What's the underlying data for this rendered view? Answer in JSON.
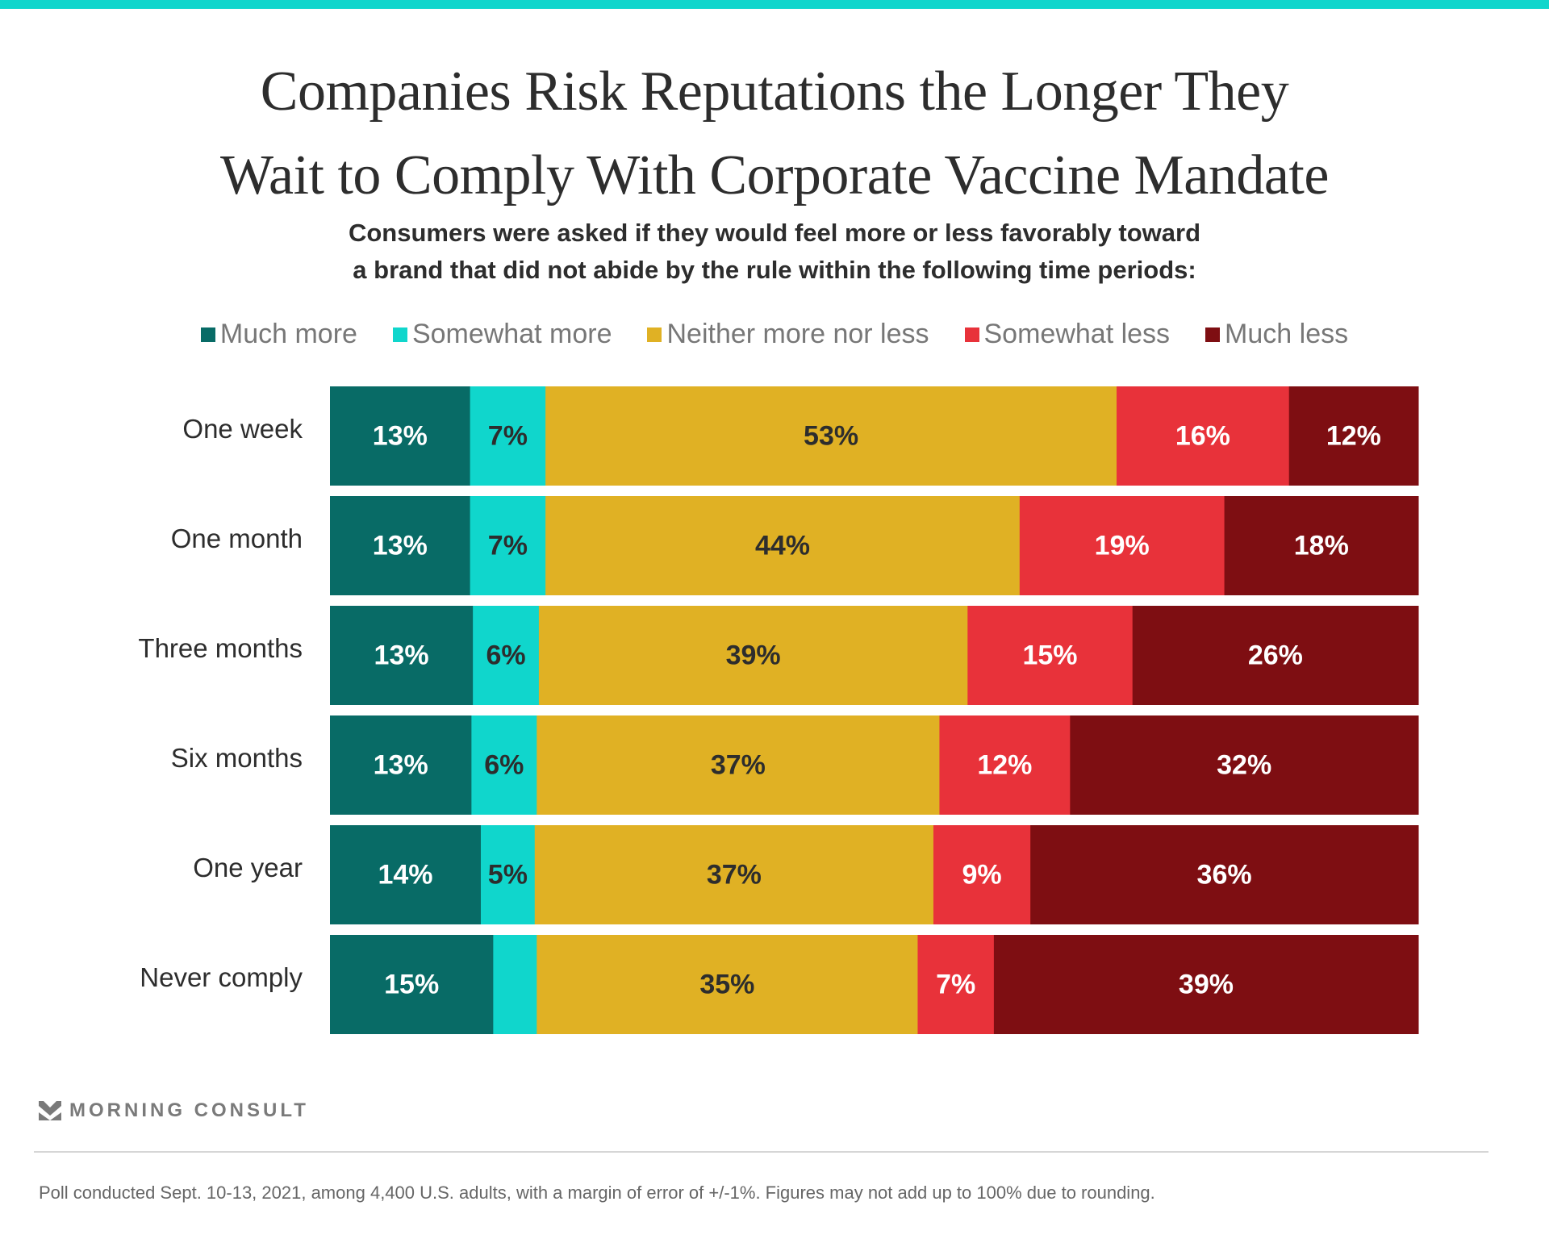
{
  "chart_data": {
    "type": "bar",
    "orientation": "horizontal",
    "stacked": true,
    "title": "Companies Risk Reputations the Longer They Wait to Comply With Corporate Vaccine Mandate",
    "title_lines": [
      "Companies Risk Reputations the Longer They",
      "Wait to Comply With Corporate Vaccine Mandate"
    ],
    "subtitle_lines": [
      "Consumers were asked if they would feel more or less favorably toward",
      "a brand that did not abide by the rule within the following time periods:"
    ],
    "xlabel": "",
    "ylabel": "",
    "xlim": [
      0,
      100
    ],
    "grid": false,
    "legend_position": "top-center",
    "categories": [
      "One week",
      "One month",
      "Three months",
      "Six months",
      "One year",
      "Never comply"
    ],
    "series": [
      {
        "name": "Much more",
        "color": "#086b66",
        "label_color": "#ffffff",
        "values": [
          13,
          13,
          13,
          13,
          14,
          15
        ],
        "labels": [
          "13%",
          "13%",
          "13%",
          "13%",
          "14%",
          "15%"
        ]
      },
      {
        "name": "Somewhat more",
        "color": "#10d6cc",
        "label_color": "#2d2d2d",
        "values": [
          7,
          7,
          6,
          6,
          5,
          4
        ],
        "labels": [
          "7%",
          "7%",
          "6%",
          "6%",
          "5%",
          ""
        ]
      },
      {
        "name": "Neither more nor less",
        "color": "#e0b124",
        "label_color": "#2d2d2d",
        "values": [
          53,
          44,
          39,
          37,
          37,
          35
        ],
        "labels": [
          "53%",
          "44%",
          "39%",
          "37%",
          "37%",
          "35%"
        ]
      },
      {
        "name": "Somewhat less",
        "color": "#e8323a",
        "label_color": "#ffffff",
        "values": [
          16,
          19,
          15,
          12,
          9,
          7
        ],
        "labels": [
          "16%",
          "19%",
          "15%",
          "12%",
          "9%",
          "7%"
        ]
      },
      {
        "name": "Much less",
        "color": "#7e0e12",
        "label_color": "#ffffff",
        "values": [
          12,
          18,
          26,
          32,
          36,
          39
        ],
        "labels": [
          "12%",
          "18%",
          "26%",
          "32%",
          "36%",
          "39%"
        ]
      }
    ]
  },
  "branding": {
    "logo_text": "MORNING CONSULT",
    "logo_icon": "chevron-down-icon"
  },
  "footnote": "Poll conducted Sept. 10-13, 2021, among 4,400 U.S. adults, with a margin of error of +/-1%. Figures may not add up to 100% due to rounding.",
  "colors": {
    "accent_bar": "#10d6cc",
    "text": "#2d2d2d",
    "muted": "#777777"
  }
}
